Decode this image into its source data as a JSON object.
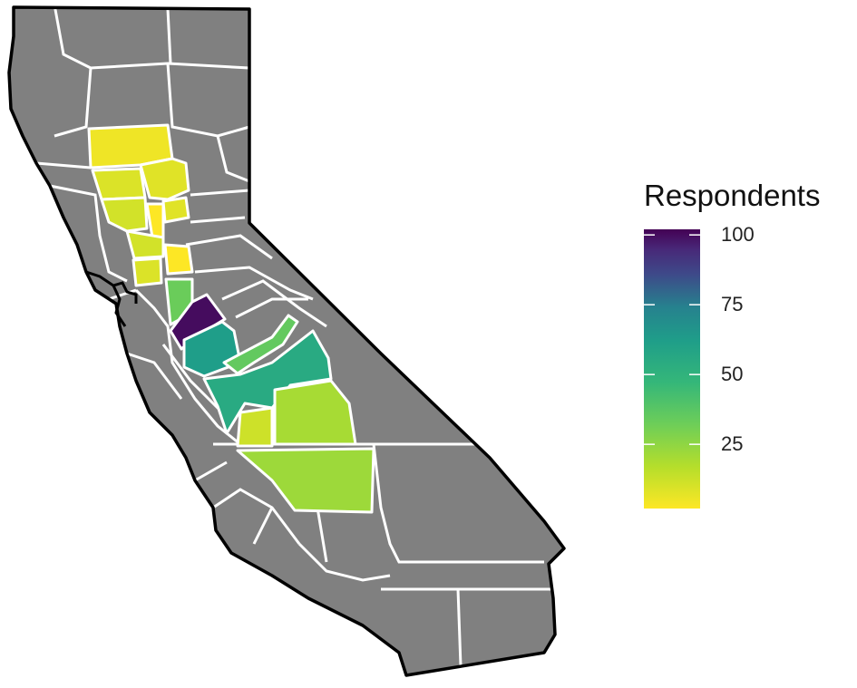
{
  "chart_data": {
    "type": "choropleth-map",
    "legend": {
      "title": "Respondents",
      "ticks": [
        100,
        75,
        50,
        25
      ],
      "tick_labels": [
        "100",
        "75",
        "50",
        "25"
      ],
      "range": [
        2,
        102
      ],
      "palette": "viridis (reversed: yellow low, purple high)",
      "placement": "right"
    },
    "missing_color": "#808080",
    "border_color": "#ffffff",
    "outline_color": "#000000",
    "regions": [
      {
        "value": 5
      },
      {
        "value": 8
      },
      {
        "value": 9
      },
      {
        "value": 11
      },
      {
        "value": 2
      },
      {
        "value": 8
      },
      {
        "value": 11
      },
      {
        "value": 1
      },
      {
        "value": 9
      },
      {
        "value": 33
      },
      {
        "value": 100
      },
      {
        "value": 62
      },
      {
        "value": 35
      },
      {
        "value": 55
      },
      {
        "value": 12
      },
      {
        "value": 20
      },
      {
        "value": 22
      }
    ]
  }
}
